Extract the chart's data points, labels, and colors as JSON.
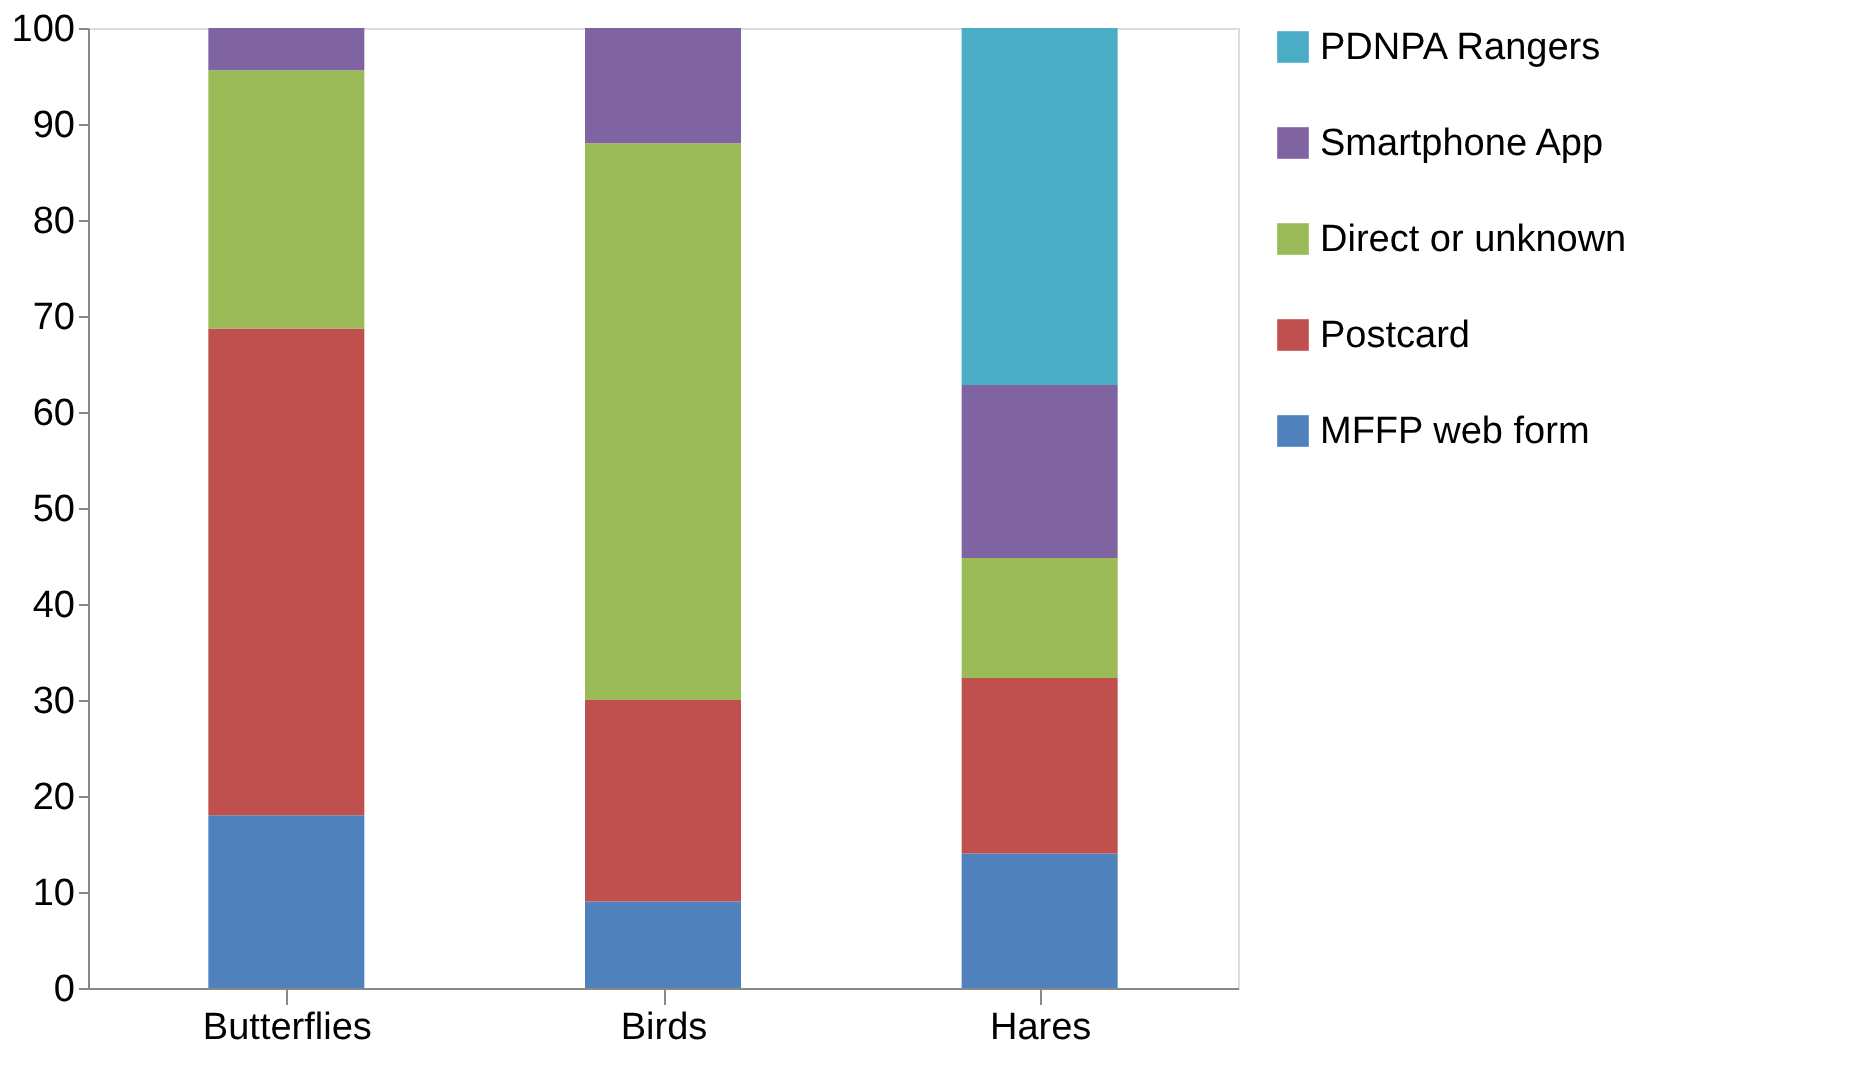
{
  "chart_data": {
    "type": "bar",
    "stacked": true,
    "categories": [
      "Butterflies",
      "Birds",
      "Hares"
    ],
    "series": [
      {
        "name": "MFFP web form",
        "color": "#4f81bd",
        "values": [
          18,
          9,
          14
        ]
      },
      {
        "name": "Postcard",
        "color": "#c0504d",
        "values": [
          50.7,
          21,
          18.3
        ]
      },
      {
        "name": "Direct or unknown",
        "color": "#9bbb59",
        "values": [
          26.9,
          58,
          12.5
        ]
      },
      {
        "name": "Smartphone App",
        "color": "#8064a2",
        "values": [
          4.4,
          12,
          18
        ]
      },
      {
        "name": "PDNPA Rangers",
        "color": "#4bacc6",
        "values": [
          null,
          null,
          37.2
        ]
      }
    ],
    "ylim": [
      0,
      100
    ],
    "yticks": [
      0,
      10,
      20,
      30,
      40,
      50,
      60,
      70,
      80,
      90,
      100
    ],
    "grid": false,
    "legend": "right"
  }
}
